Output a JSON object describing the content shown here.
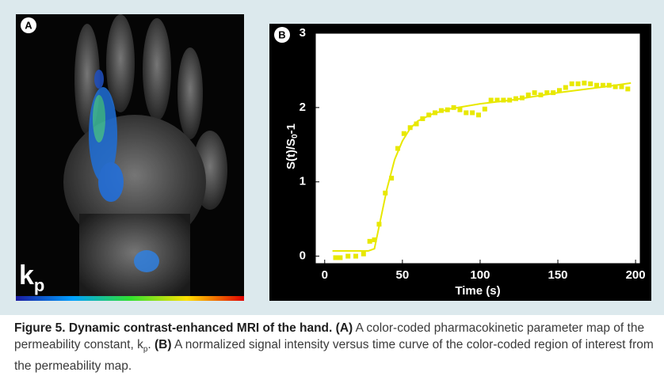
{
  "panel_a": {
    "label": "A",
    "symbol": "k",
    "symbol_sub": "p"
  },
  "chart_data": {
    "type": "scatter",
    "label": "B",
    "xlabel": "Time (s)",
    "ylabel": "S(t)/S",
    "ylabel_sub": "0",
    "ylabel_end": "-1",
    "xlim": [
      -6,
      203
    ],
    "ylim": [
      -0.1,
      3
    ],
    "xticks": [
      0,
      50,
      100,
      150,
      200
    ],
    "yticks": [
      0,
      1,
      2,
      3
    ],
    "grid": false,
    "series": [
      {
        "type": "scatter",
        "color": "#e8e800",
        "x": [
          7,
          10,
          15,
          20,
          25,
          29,
          32,
          35,
          39,
          43,
          47,
          51,
          55,
          59,
          63,
          67,
          71,
          75,
          79,
          83,
          87,
          91,
          95,
          99,
          103,
          107,
          111,
          115,
          119,
          123,
          127,
          131,
          135,
          139,
          143,
          147,
          151,
          155,
          159,
          163,
          167,
          171,
          175,
          179,
          183,
          187,
          191,
          195
        ],
        "values": [
          -0.02,
          -0.02,
          0.0,
          0.0,
          0.03,
          0.2,
          0.22,
          0.43,
          0.85,
          1.05,
          1.45,
          1.65,
          1.73,
          1.78,
          1.85,
          1.9,
          1.93,
          1.96,
          1.97,
          2.0,
          1.97,
          1.93,
          1.93,
          1.9,
          1.98,
          2.1,
          2.1,
          2.1,
          2.1,
          2.12,
          2.13,
          2.17,
          2.2,
          2.17,
          2.2,
          2.2,
          2.23,
          2.27,
          2.32,
          2.32,
          2.33,
          2.32,
          2.3,
          2.3,
          2.3,
          2.28,
          2.28,
          2.25
        ]
      },
      {
        "type": "line",
        "color": "#e8e800",
        "x": [
          5,
          28,
          32,
          35,
          40,
          45,
          50,
          55,
          60,
          70,
          80,
          100,
          120,
          150,
          180,
          197
        ],
        "values": [
          0.07,
          0.07,
          0.1,
          0.4,
          0.9,
          1.3,
          1.55,
          1.72,
          1.82,
          1.92,
          1.98,
          2.05,
          2.1,
          2.2,
          2.28,
          2.33
        ]
      }
    ]
  },
  "caption": {
    "title": "Figure 5. Dynamic contrast-enhanced MRI of the hand.",
    "a_label": "(A)",
    "a_text": "A color-coded pharmacokinetic parameter map of the permeability constant, k",
    "a_sub": "p",
    "a_end": ".",
    "b_label": "(B)",
    "b_text": "A normalized signal intensity versus time curve of the color-coded region of interest from the permeability map."
  }
}
